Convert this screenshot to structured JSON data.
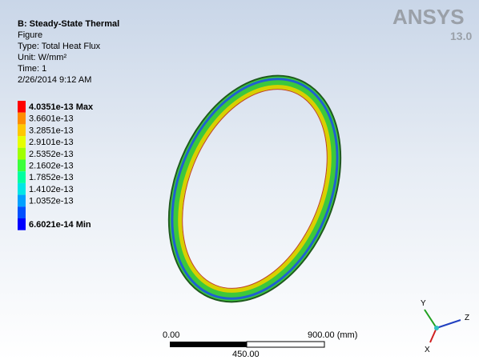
{
  "header": {
    "title": "B: Steady-State Thermal",
    "lines": [
      "Figure",
      "Type: Total Heat Flux",
      "Unit: W/mm²",
      "Time: 1",
      "2/26/2014 9:12 AM"
    ]
  },
  "legend": {
    "items": [
      {
        "label": "4.0351e-13 Max",
        "color": "#ff0000"
      },
      {
        "label": "3.6601e-13",
        "color": "#ff8c00"
      },
      {
        "label": "3.2851e-13",
        "color": "#ffc800"
      },
      {
        "label": "2.9101e-13",
        "color": "#e6ff00"
      },
      {
        "label": "2.5352e-13",
        "color": "#a0ff00"
      },
      {
        "label": "2.1602e-13",
        "color": "#3cff3c"
      },
      {
        "label": "1.7852e-13",
        "color": "#00ffa0"
      },
      {
        "label": "1.4102e-13",
        "color": "#00e6e6"
      },
      {
        "label": "1.0352e-13",
        "color": "#00a0ff"
      },
      {
        "label": "",
        "color": "#0050ff"
      },
      {
        "label": "6.6021e-14 Min",
        "color": "#0000ff"
      }
    ]
  },
  "logo": {
    "name": "ANSYS",
    "version": "13.0"
  },
  "scale_bar": {
    "start": "0.00",
    "end": "900.00 (mm)",
    "middle": "450.00"
  },
  "triad": {
    "x": "X",
    "y": "Y",
    "z": "Z"
  }
}
